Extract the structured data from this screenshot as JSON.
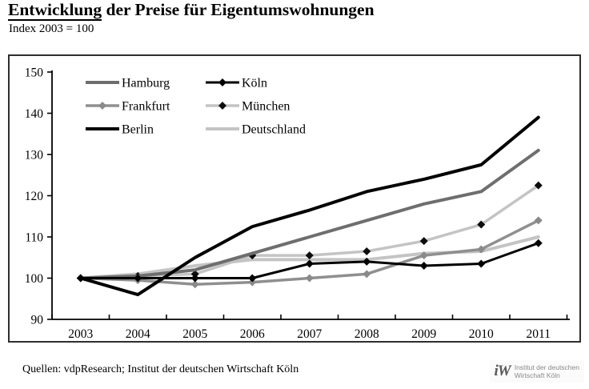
{
  "header": {
    "title_underlined": "Entwicklung",
    "title_rest": " der Preise für Eigentumswohnungen",
    "subtitle": "Index 2003 = 100"
  },
  "chart_data": {
    "type": "line",
    "title": "Entwicklung der Preise für Eigentumswohnungen",
    "subtitle": "Index 2003 = 100",
    "x": [
      2003,
      2004,
      2005,
      2006,
      2007,
      2008,
      2009,
      2010,
      2011
    ],
    "ylim": [
      90,
      150
    ],
    "yticks": [
      90,
      100,
      110,
      120,
      130,
      140,
      150
    ],
    "grid": "off",
    "legend_position": "top-left",
    "series": [
      {
        "name": "Hamburg",
        "color": "#6e6e6e",
        "width": 4,
        "marker": "none",
        "values": [
          100,
          100.5,
          102,
          106,
          110,
          114,
          118,
          121,
          131
        ]
      },
      {
        "name": "Köln",
        "color": "#000000",
        "width": 3,
        "marker": "diamond",
        "marker_color": "#000000",
        "values": [
          100,
          100,
          100,
          100,
          103.5,
          104,
          103,
          103.5,
          108.5
        ]
      },
      {
        "name": "Frankfurt",
        "color": "#8f8f8f",
        "width": 3.5,
        "marker": "diamond",
        "marker_color": "#8a8a8a",
        "values": [
          100,
          99.5,
          98.5,
          99,
          100,
          101,
          105.5,
          107,
          114
        ]
      },
      {
        "name": "München",
        "color": "#c4c4c4",
        "width": 3.5,
        "marker": "diamond",
        "marker_color": "#0d0d0d",
        "values": [
          100,
          100.5,
          101,
          105.5,
          105.5,
          106.5,
          109,
          113,
          122.5
        ]
      },
      {
        "name": "Berlin",
        "color": "#000000",
        "width": 4,
        "marker": "none",
        "values": [
          100,
          96,
          105,
          112.5,
          116.5,
          121,
          124,
          127.5,
          139
        ]
      },
      {
        "name": "Deutschland",
        "color": "#c4c4c4",
        "width": 4,
        "marker": "none",
        "values": [
          100,
          101,
          103,
          104.5,
          104.5,
          104.5,
          106,
          106.5,
          110
        ]
      }
    ],
    "zorder": [
      "Deutschland",
      "München",
      "Frankfurt",
      "Hamburg",
      "Köln",
      "Berlin"
    ]
  },
  "footer": {
    "sources": "Quellen: vdpResearch; Institut der deutschen Wirtschaft Köln",
    "logo_mark": "iW",
    "logo_line1": "Institut der deutschen",
    "logo_line2": "Wirtschaft Köln"
  }
}
